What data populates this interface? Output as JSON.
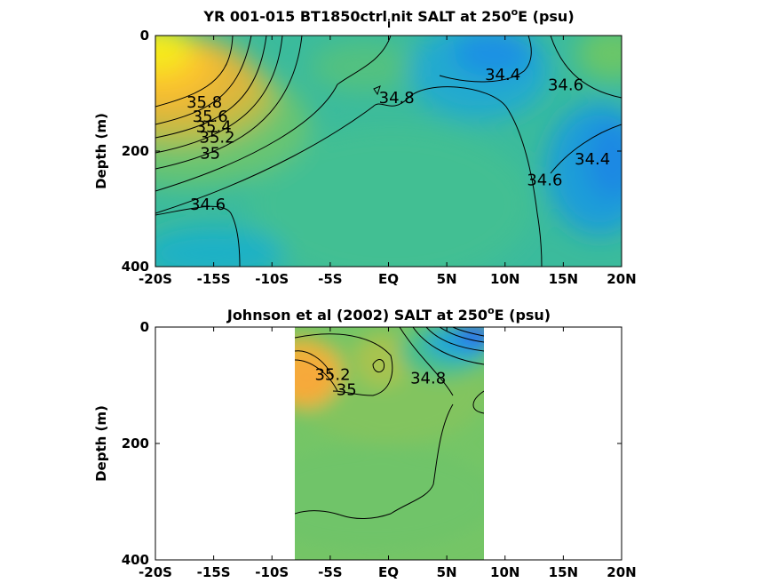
{
  "chart_data": [
    {
      "type": "heatmap",
      "title": "YR 001-015 BT1850ctrl_init SALT at 250ºE (psu)",
      "title_parts": {
        "main": "YR 001-015 BT1850ctrl",
        "sub": "i",
        "rest": "nit SALT at 250",
        "sup": "o",
        "tail": "E (psu)"
      },
      "xlabel": "",
      "ylabel": "Depth (m)",
      "xlim": [
        -20,
        20
      ],
      "ylim": [
        400,
        0
      ],
      "y_reversed": true,
      "xticks": [
        -20,
        -15,
        -10,
        -5,
        0,
        5,
        10,
        15,
        20
      ],
      "xtick_labels": [
        "-20S",
        "-15S",
        "-10S",
        "-5S",
        "EQ",
        "5N",
        "10N",
        "15N",
        "20N"
      ],
      "yticks": [
        0,
        200,
        400
      ],
      "ytick_labels": [
        "0",
        "200",
        "400"
      ],
      "colormap": "parula",
      "color_range": [
        33.8,
        36.2
      ],
      "data_lon_range": [
        -20,
        20
      ],
      "contour_labels": [
        {
          "text": "35.8",
          "lon": -15.8,
          "depth": 115
        },
        {
          "text": "35.6",
          "lon": -15.3,
          "depth": 140
        },
        {
          "text": "35.4",
          "lon": -15.0,
          "depth": 158
        },
        {
          "text": "35.2",
          "lon": -14.7,
          "depth": 176
        },
        {
          "text": "35",
          "lon": -15.3,
          "depth": 204
        },
        {
          "text": "34.6",
          "lon": -15.5,
          "depth": 292
        },
        {
          "text": "34.8",
          "lon": 0.7,
          "depth": 108
        },
        {
          "text": "34.4",
          "lon": 9.8,
          "depth": 68
        },
        {
          "text": "34.6",
          "lon": 15.2,
          "depth": 85
        },
        {
          "text": "34.6",
          "lon": 13.4,
          "depth": 250
        },
        {
          "text": "34.4",
          "lon": 17.5,
          "depth": 214
        }
      ]
    },
    {
      "type": "heatmap",
      "title": "Johnson et al (2002) SALT at 250ºE (psu)",
      "title_parts": {
        "main": "Johnson et al (2002) SALT at 250",
        "sub": "",
        "rest": "",
        "sup": "o",
        "tail": "E (psu)"
      },
      "xlabel": "",
      "ylabel": "Depth (m)",
      "xlim": [
        -20,
        20
      ],
      "ylim": [
        400,
        0
      ],
      "y_reversed": true,
      "xticks": [
        -20,
        -15,
        -10,
        -5,
        0,
        5,
        10,
        15,
        20
      ],
      "xtick_labels": [
        "-20S",
        "-15S",
        "-10S",
        "-5S",
        "EQ",
        "5N",
        "10N",
        "15N",
        "20N"
      ],
      "yticks": [
        0,
        200,
        400
      ],
      "ytick_labels": [
        "0",
        "200",
        "400"
      ],
      "colormap": "parula",
      "color_range": [
        33.8,
        36.2
      ],
      "data_lon_range": [
        -8,
        8.3
      ],
      "contour_labels": [
        {
          "text": "35.2",
          "lon": -4.8,
          "depth": 82
        },
        {
          "text": "35",
          "lon": -3.6,
          "depth": 108
        },
        {
          "text": "34.8",
          "lon": 3.4,
          "depth": 88
        }
      ]
    }
  ]
}
